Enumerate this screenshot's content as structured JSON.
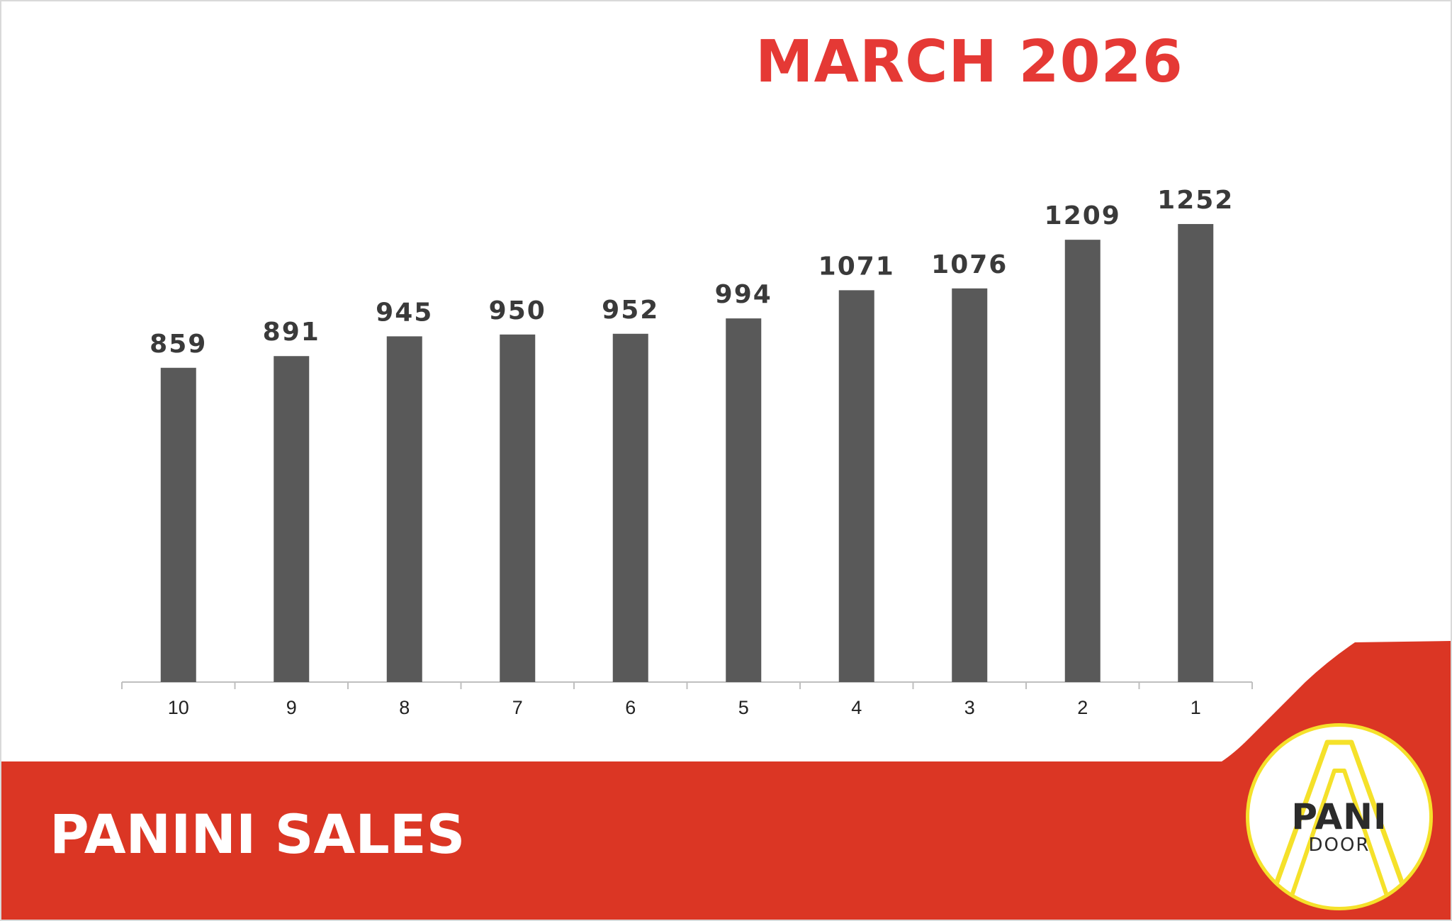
{
  "colors": {
    "accent": "#e53935",
    "footer": "#db3624",
    "bar": "#595959",
    "logo_ring": "#f5e12a"
  },
  "chart_data": {
    "type": "bar",
    "title": "MARCH 2026",
    "categories": [
      "10",
      "9",
      "8",
      "7",
      "6",
      "5",
      "4",
      "3",
      "2",
      "1"
    ],
    "values": [
      859,
      891,
      945,
      950,
      952,
      994,
      1071,
      1076,
      1209,
      1252
    ],
    "xlabel": "",
    "ylabel": "",
    "ylim": [
      0,
      1400
    ],
    "grid": false,
    "legend": "none"
  },
  "footer": {
    "label": "PANINI SALES"
  },
  "logo": {
    "main": "PANI",
    "sub": "DOOR"
  }
}
